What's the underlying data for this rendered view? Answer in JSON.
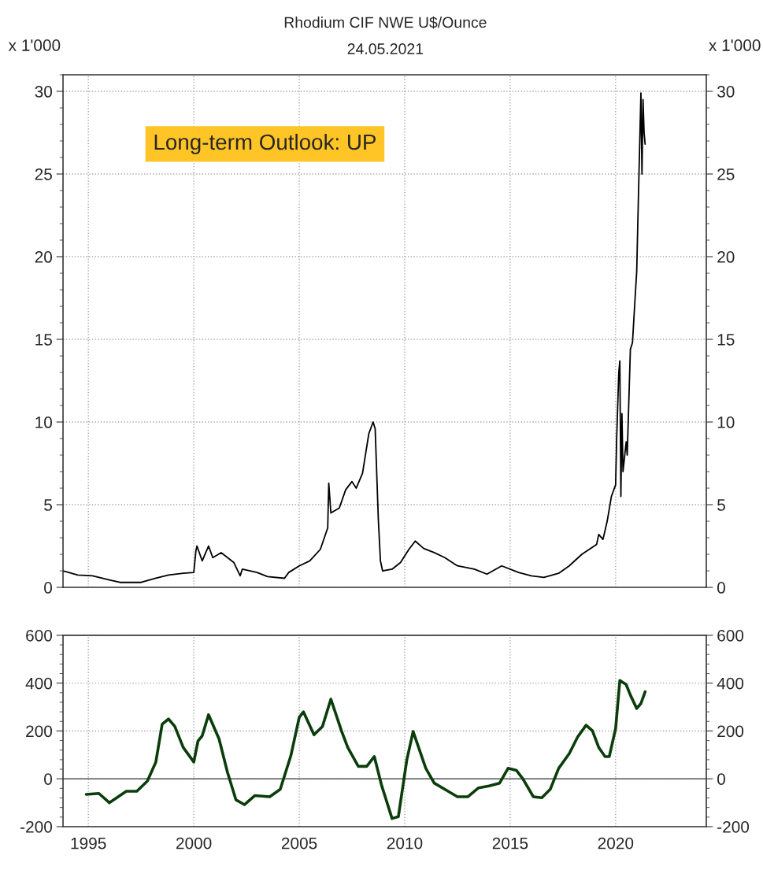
{
  "chart_data": [
    {
      "type": "line",
      "title": "Rhodium CIF NWE U$/Ounce",
      "subtitle": "24.05.2021",
      "ylabel": "x 1'000",
      "y2label": "x 1'000",
      "annotations": [
        "Long-term Outlook: UP"
      ],
      "xlim": [
        1993.8,
        2024.3
      ],
      "xticks": [
        {
          "value": 1995,
          "label": null
        },
        {
          "value": 2000,
          "label": null
        },
        {
          "value": 2005,
          "label": null
        },
        {
          "value": 2010,
          "label": null
        },
        {
          "value": 2015,
          "label": null
        },
        {
          "value": 2020,
          "label": null
        }
      ],
      "ylim": [
        0,
        31
      ],
      "yticks": [
        0,
        5,
        10,
        15,
        20,
        25,
        30
      ],
      "y2lim": [
        0,
        31
      ],
      "y2ticks": [
        0,
        5,
        10,
        15,
        20,
        25,
        30
      ],
      "tick_labels": "y",
      "grid": true,
      "legend": false,
      "marker": "none",
      "line_style": "solid",
      "series": [
        {
          "color": "#000000",
          "x": [
            1993.8,
            1994.5,
            1995.2,
            1996.0,
            1996.5,
            1997.5,
            1998.2,
            1998.8,
            1999.5,
            2000.0,
            2000.1,
            2000.15,
            2000.4,
            2000.7,
            2000.9,
            2001.3,
            2001.9,
            2002.2,
            2002.3,
            2003.0,
            2003.5,
            2004.3,
            2004.5,
            2005.0,
            2005.5,
            2006.0,
            2006.35,
            2006.4,
            2006.5,
            2006.9,
            2007.2,
            2007.5,
            2007.7,
            2008.0,
            2008.3,
            2008.5,
            2008.6,
            2008.75,
            2008.85,
            2008.95,
            2009.4,
            2009.8,
            2010.2,
            2010.5,
            2010.9,
            2011.4,
            2011.9,
            2012.5,
            2013.3,
            2013.9,
            2014.6,
            2015.4,
            2016.0,
            2016.6,
            2017.3,
            2017.8,
            2018.4,
            2019.1,
            2019.2,
            2019.4,
            2019.6,
            2019.8,
            2020.0,
            2020.05,
            2020.15,
            2020.2,
            2020.25,
            2020.3,
            2020.35,
            2020.5,
            2020.55,
            2020.7,
            2020.8,
            2020.9,
            2021.0,
            2021.05,
            2021.1,
            2021.2,
            2021.25,
            2021.3,
            2021.35,
            2021.4
          ],
          "values": [
            1.0,
            0.75,
            0.7,
            0.45,
            0.3,
            0.3,
            0.55,
            0.75,
            0.85,
            0.9,
            2.2,
            2.5,
            1.6,
            2.5,
            1.8,
            2.1,
            1.5,
            0.7,
            1.1,
            0.9,
            0.65,
            0.55,
            0.9,
            1.3,
            1.6,
            2.3,
            3.6,
            6.3,
            4.5,
            4.8,
            5.9,
            6.4,
            6.0,
            6.9,
            9.3,
            10.0,
            9.6,
            4.1,
            1.6,
            1.0,
            1.1,
            1.5,
            2.3,
            2.8,
            2.35,
            2.1,
            1.8,
            1.3,
            1.1,
            0.8,
            1.3,
            0.9,
            0.7,
            0.6,
            0.85,
            1.3,
            2.0,
            2.6,
            3.2,
            2.9,
            4.0,
            5.5,
            6.2,
            9.0,
            13.0,
            13.7,
            5.5,
            10.5,
            7.0,
            8.8,
            8.0,
            14.4,
            14.8,
            17.0,
            19.1,
            21.9,
            24.6,
            29.9,
            25.0,
            29.5,
            27.5,
            26.8
          ]
        }
      ]
    },
    {
      "type": "line",
      "xlim": [
        1993.8,
        2024.3
      ],
      "xticks": [
        1995,
        2000,
        2005,
        2010,
        2015,
        2020
      ],
      "ylim": [
        -200,
        600
      ],
      "yticks": [
        -200,
        0,
        200,
        400,
        600
      ],
      "y2lim": [
        -200,
        600
      ],
      "y2ticks": [
        -200,
        0,
        200,
        400,
        600
      ],
      "grid": true,
      "legend": false,
      "marker": "none",
      "line_style": "solid",
      "ref_lines": [
        {
          "axis": "y",
          "value": 0,
          "color": "#555555"
        }
      ],
      "series": [
        {
          "color": "#0b3d0b",
          "x": [
            1994.9,
            1995.5,
            1996.0,
            1996.8,
            1997.3,
            1997.8,
            1998.2,
            1998.5,
            1998.8,
            1999.1,
            1999.5,
            2000.0,
            2000.2,
            2000.4,
            2000.7,
            2001.2,
            2001.6,
            2002.0,
            2002.4,
            2002.9,
            2003.6,
            2004.1,
            2004.6,
            2005.0,
            2005.2,
            2005.7,
            2006.1,
            2006.5,
            2007.0,
            2007.3,
            2007.8,
            2008.2,
            2008.56,
            2008.9,
            2009.4,
            2009.7,
            2010.1,
            2010.4,
            2011.0,
            2011.4,
            2011.9,
            2012.5,
            2013.0,
            2013.5,
            2014.0,
            2014.5,
            2014.9,
            2015.3,
            2015.6,
            2016.1,
            2016.5,
            2016.9,
            2017.3,
            2017.8,
            2018.2,
            2018.6,
            2018.9,
            2019.2,
            2019.5,
            2019.7,
            2020.0,
            2020.2,
            2020.5,
            2020.7,
            2021.0,
            2021.2,
            2021.4
          ],
          "values": [
            -65,
            -61,
            -100,
            -52,
            -52,
            -9,
            70,
            228,
            250,
            219,
            131,
            70,
            158,
            180,
            268,
            166,
            26,
            -88,
            -108,
            -70,
            -75,
            -44,
            96,
            257,
            280,
            184,
            219,
            333,
            201,
            131,
            52,
            52,
            93,
            -26,
            -166,
            -158,
            79,
            198,
            44,
            -18,
            -44,
            -75,
            -75,
            -38,
            -30,
            -18,
            44,
            35,
            0,
            -75,
            -79,
            -44,
            44,
            105,
            175,
            224,
            201,
            131,
            93,
            93,
            210,
            411,
            394,
            350,
            294,
            315,
            364
          ]
        }
      ]
    }
  ]
}
